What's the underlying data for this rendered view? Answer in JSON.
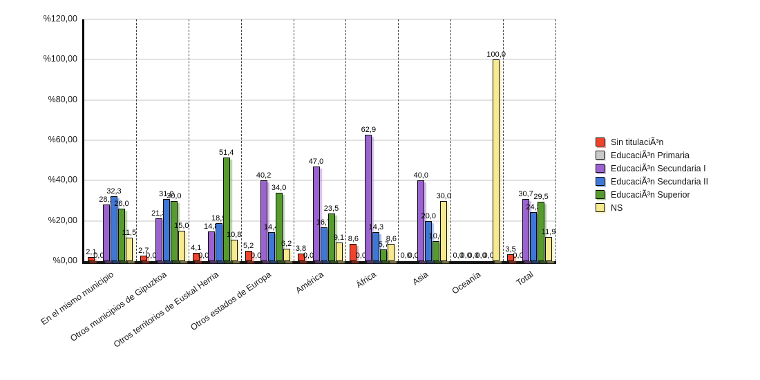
{
  "chart_data": {
    "type": "bar",
    "title": "",
    "xlabel": "",
    "ylabel": "",
    "grid": true,
    "legend_position": "right",
    "value_label_decimal_separator": ",",
    "categories": [
      "En el mismo municipio",
      "Otros municipios de Gipuzkoa",
      "Otros territorios de Euskal Herria",
      "Otros estados de Europa",
      "América",
      "África",
      "Asia",
      "Oceanía",
      "Total"
    ],
    "series": [
      {
        "name": "Sin titulaciÃ³n",
        "color": "#f1432b",
        "values": [
          2.1,
          2.7,
          4.1,
          5.2,
          3.8,
          8.6,
          0.0,
          0.0,
          3.5
        ]
      },
      {
        "name": "EducaciÃ³n Primaria",
        "color": "#c9c9c9",
        "values": [
          0.0,
          0.0,
          0.0,
          0.0,
          0.0,
          0.0,
          0.0,
          0.0,
          0.0
        ]
      },
      {
        "name": "EducaciÃ³n Secundaria I",
        "color": "#9a63cf",
        "values": [
          28.1,
          21.3,
          14.8,
          40.2,
          47.0,
          62.9,
          40.0,
          0.0,
          30.7
        ]
      },
      {
        "name": "EducaciÃ³n Secundaria II",
        "color": "#3f77d6",
        "values": [
          32.3,
          31.0,
          18.9,
          14.4,
          16.7,
          14.3,
          20.0,
          0.0,
          24.3
        ]
      },
      {
        "name": "EducaciÃ³n Superior",
        "color": "#579b2e",
        "values": [
          26.0,
          30.0,
          51.4,
          34.0,
          23.5,
          5.7,
          10.0,
          0.0,
          29.5
        ]
      },
      {
        "name": "NS",
        "color": "#f6e98e",
        "values": [
          11.5,
          15.0,
          10.8,
          6.2,
          9.1,
          8.6,
          30.0,
          100.0,
          11.9
        ]
      }
    ],
    "y_axis": {
      "min": 0,
      "max": 120,
      "step": 20,
      "tick_labels": [
        "%0,00",
        "%20,00",
        "%40,00",
        "%60,00",
        "%80,00",
        "%100,00",
        "%120,00"
      ]
    },
    "style_colors": {
      "background": "#ffffff",
      "gridline": "#e2e2e2",
      "group_separator": "#3c3c3c",
      "axis": "#000000",
      "bar_border": "#0a0a0a"
    }
  }
}
